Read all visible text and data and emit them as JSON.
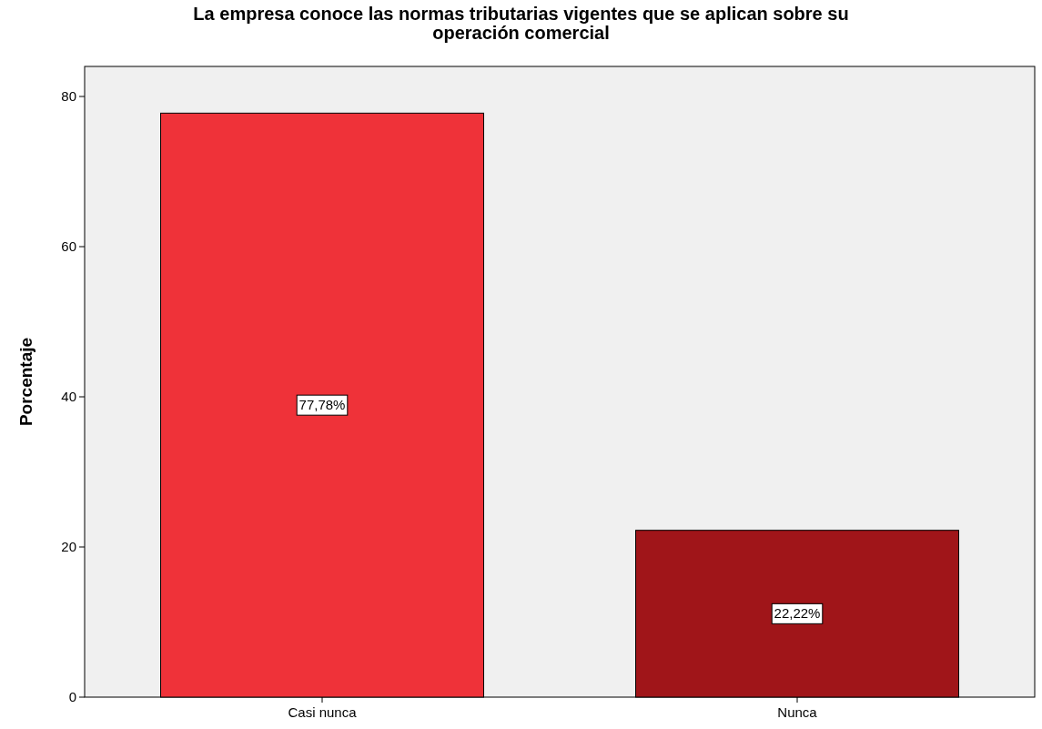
{
  "chart_data": {
    "type": "bar",
    "title": "La empresa conoce las normas tributarias vigentes que se aplican sobre su operación comercial",
    "ylabel": "Porcentaje",
    "categories": [
      "Casi nunca",
      "Nunca"
    ],
    "values": [
      77.78,
      22.22
    ],
    "colors": [
      "#ef3239",
      "#a01519"
    ],
    "value_labels": [
      "77,78%",
      "22,22%"
    ],
    "ylim": [
      0,
      84
    ],
    "yticks": [
      0,
      20,
      40,
      60,
      80
    ]
  }
}
